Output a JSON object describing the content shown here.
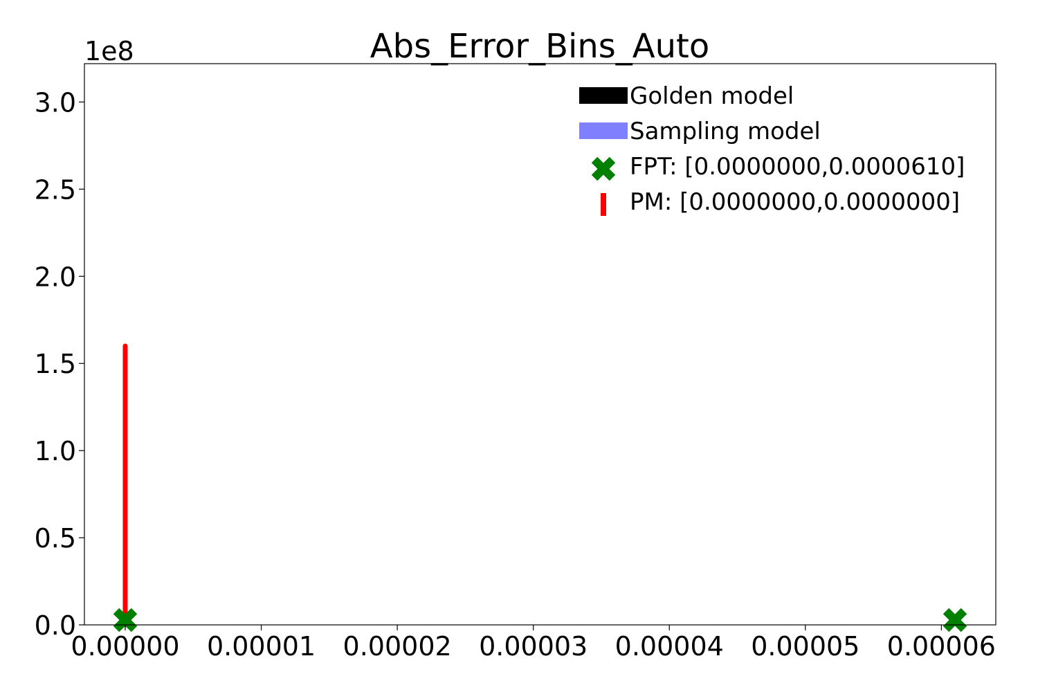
{
  "chart_data": {
    "type": "line",
    "title": "Abs_Error_Bins_Auto",
    "xlabel": "",
    "ylabel": "",
    "y_offset_label": "1e8",
    "xlim": [
      -3e-06,
      6.4e-05
    ],
    "ylim": [
      0,
      3.22
    ],
    "x_ticks": [
      0.0,
      1e-05,
      2e-05,
      3e-05,
      4e-05,
      5e-05,
      6e-05
    ],
    "x_tick_labels": [
      "0.00000",
      "0.00001",
      "0.00002",
      "0.00003",
      "0.00004",
      "0.00005",
      "0.00006"
    ],
    "y_ticks": [
      0.0,
      0.5,
      1.0,
      1.5,
      2.0,
      2.5,
      3.0
    ],
    "y_tick_labels": [
      "0.0",
      "0.5",
      "1.0",
      "1.5",
      "2.0",
      "2.5",
      "3.0"
    ],
    "grid": false,
    "legend_position": "top-right",
    "series": [
      {
        "name": "Golden model",
        "kind": "histogram",
        "color": "#000000",
        "x": [],
        "y": []
      },
      {
        "name": "Sampling model",
        "kind": "histogram",
        "color": "#8080ff",
        "x": [],
        "y": []
      },
      {
        "name": "FPT: [0.0000000,0.0000610]",
        "kind": "markers",
        "marker": "x-thick",
        "color": "#008000",
        "x": [
          0.0,
          6.1e-05
        ],
        "y": [
          0.0,
          0.0
        ]
      },
      {
        "name": "PM: [0.0000000,0.0000000]",
        "kind": "vline",
        "color": "#ff0000",
        "x": [
          0.0,
          0.0
        ],
        "y": [
          0.0,
          1.6
        ]
      }
    ]
  }
}
